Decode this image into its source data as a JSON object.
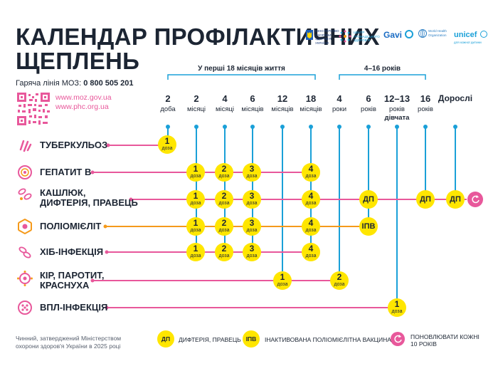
{
  "title_line1": "КАЛЕНДАР ПРОФІЛАКТИЧНИХ",
  "title_line2": "ЩЕПЛЕНЬ",
  "hotline_label": "Гаряча лінія МОЗ:",
  "hotline_number": "0 800 505 201",
  "url1": "www.moz.gov.ua",
  "url2": "www.phc.org.ua",
  "logos": {
    "moz": "МІНІСТЕРСТВО ОХОРОНИ ЗДОРОВ'Я УКРАЇНИ",
    "phc": "ЦЕНТР ГРОМАДСЬКОГО ЗДОРОВ'Я",
    "gavi": "Gavi",
    "who": "World Health Organization",
    "unicef": "unicef",
    "unicef_sub": "для кожної дитини"
  },
  "brackets": {
    "first18": "У перші 18 місяців життя",
    "years": "4–16 років"
  },
  "ages": [
    {
      "num": "2",
      "unit": "доба"
    },
    {
      "num": "2",
      "unit": "місяці"
    },
    {
      "num": "4",
      "unit": "місяці"
    },
    {
      "num": "6",
      "unit": "місяців"
    },
    {
      "num": "12",
      "unit": "місяців"
    },
    {
      "num": "18",
      "unit": "місяців"
    },
    {
      "num": "4",
      "unit": "роки"
    },
    {
      "num": "6",
      "unit": "років"
    },
    {
      "num": "12–13",
      "unit": "років",
      "extra": "дівчата"
    },
    {
      "num": "16",
      "unit": "років"
    },
    {
      "num": "Дорослі",
      "unit": ""
    }
  ],
  "diseases": [
    {
      "label": "ТУБЕРКУЛЬОЗ",
      "color": "#e8589b"
    },
    {
      "label": "ГЕПАТИТ В",
      "color": "#e8589b"
    },
    {
      "label": "КАШЛЮК,",
      "label2": "ДИФТЕРІЯ, ПРАВЕЦЬ",
      "color": "#e8589b"
    },
    {
      "label": "ПОЛІОМІЄЛІТ",
      "color": "#f59a1b"
    },
    {
      "label": "ХІБ-ІНФЕКЦІЯ",
      "color": "#e8589b"
    },
    {
      "label": "КІР, ПАРОТИТ,",
      "label2": "КРАСНУХА",
      "color": "#e8589b"
    },
    {
      "label": "ВПЛ-ІНФЕКЦІЯ",
      "color": "#e8589b"
    }
  ],
  "dose_word": "доза",
  "doses": {
    "tb": [
      "1"
    ],
    "hepb": [
      "1",
      "2",
      "3",
      "4"
    ],
    "dtp": [
      "1",
      "2",
      "3",
      "4",
      "ДП",
      "ДП",
      "ДП"
    ],
    "polio": [
      "1",
      "2",
      "3",
      "4",
      "ІПВ"
    ],
    "hib": [
      "1",
      "2",
      "3",
      "4"
    ],
    "mmr": [
      "1",
      "2"
    ],
    "hpv": [
      "1"
    ]
  },
  "footnote_line1": "Чинний, затверджений Міністерством",
  "footnote_line2": "охорони здоров'я України в 2025 році",
  "legend": {
    "dp_badge": "ДП",
    "dp_text": "ДИФТЕРІЯ, ПРАВЕЦЬ",
    "ipv_badge": "ІПВ",
    "ipv_text": "ІНАКТИВОВАНА ПОЛІОМІЄЛІТНА ВАКЦИНА",
    "renew_text1": "ПОНОВЛЮВАТИ КОЖНІ",
    "renew_text2": "10 РОКІВ"
  },
  "colors": {
    "blue": "#1aa0d8",
    "pink": "#e8589b",
    "yellow": "#ffe600",
    "orange": "#f59a1b",
    "dark": "#1c2533"
  }
}
